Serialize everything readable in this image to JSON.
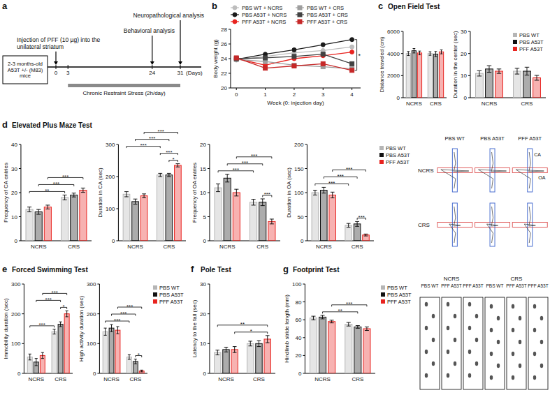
{
  "timeline": {
    "panel": "a",
    "cohort": "2-3 months-old A53T +/- (M83) mice",
    "injection": "Injection of PFF (10 µg) into the unilateral striatum",
    "behavior": "Behavioral analysis",
    "neuro": "Neuropathological analysis",
    "stress": "Chronic Restraint Stress (2h/day)",
    "days": [
      0,
      3,
      24,
      31
    ],
    "unit": "(Days)"
  },
  "chart_data": [
    {
      "panel": "b",
      "type": "line",
      "x": [
        0,
        1,
        2,
        3,
        4
      ],
      "xlim": [
        -0.2,
        4.3
      ],
      "xticks": [
        0,
        1,
        2,
        3,
        4
      ],
      "ylim": [
        20,
        28
      ],
      "yticks": [
        20,
        22,
        24,
        26,
        28
      ],
      "x_label": "Week (0: injection day)",
      "y_label": "Body weight (g)",
      "legend": "top",
      "series": [
        {
          "name": "PBS WT + NCRS",
          "color": "#bdbdbd",
          "marker": "circle",
          "values": [
            23.8,
            24.3,
            24.8,
            25.1,
            25.6
          ]
        },
        {
          "name": "PBS A53T + NCRS",
          "color": "#1a1a1a",
          "marker": "circle",
          "values": [
            23.9,
            24.6,
            25.2,
            25.9,
            26.6
          ]
        },
        {
          "name": "PFF A53T + NCRS",
          "color": "#e8231f",
          "marker": "circle",
          "values": [
            24.0,
            23.1,
            24.0,
            24.4,
            24.9
          ]
        },
        {
          "name": "PBS WT + CRS",
          "color": "#9e9e9e",
          "marker": "square",
          "values": [
            23.9,
            23.6,
            23.1,
            22.9,
            22.6
          ]
        },
        {
          "name": "PBS A53T + CRS",
          "color": "#424242",
          "marker": "square",
          "values": [
            24.0,
            24.1,
            24.3,
            24.6,
            23.3
          ]
        },
        {
          "name": "PFF A53T + CRS",
          "color": "#c62828",
          "marker": "square",
          "values": [
            24.1,
            22.7,
            23.0,
            23.3,
            22.4
          ]
        }
      ],
      "annotations": [
        {
          "text": "*",
          "series": [
            1,
            5
          ]
        }
      ]
    },
    {
      "panel": "c",
      "title": "Open Field Test",
      "type": "bar",
      "categories": [
        "NCRS",
        "CRS"
      ],
      "y_label": "Distance traveled (cm)",
      "ylim": [
        0,
        6000
      ],
      "yticks": [
        0,
        2000,
        4000,
        6000
      ],
      "series": [
        {
          "name": "PBS WT",
          "color": "#b5b5b5",
          "values": [
            4000,
            4000
          ],
          "errors": [
            180,
            160
          ]
        },
        {
          "name": "PBS A53T",
          "color": "#111111",
          "values": [
            4250,
            3950
          ],
          "errors": [
            200,
            230
          ]
        },
        {
          "name": "PFF A53T",
          "color": "#e8231f",
          "values": [
            4050,
            4150
          ],
          "errors": [
            170,
            180
          ]
        }
      ]
    },
    {
      "type": "bar",
      "categories": [
        "NCRS",
        "CRS"
      ],
      "y_label": "Duration in the center (sec)",
      "ylim": [
        0,
        30
      ],
      "yticks": [
        0,
        10,
        20,
        30
      ],
      "legend": "upper right",
      "series": [
        {
          "name": "PBS WT",
          "color": "#b5b5b5",
          "values": [
            11,
            12
          ],
          "errors": [
            1.2,
            1.3
          ]
        },
        {
          "name": "PBS A53T",
          "color": "#111111",
          "values": [
            13,
            12
          ],
          "errors": [
            1.5,
            1.8
          ]
        },
        {
          "name": "PFF A53T",
          "color": "#e8231f",
          "values": [
            12,
            9
          ],
          "errors": [
            1.0,
            1.1
          ]
        }
      ]
    },
    {
      "panel": "d",
      "title": "Elevated Plus Maze Test",
      "type": "bar",
      "categories": [
        "NCRS",
        "CRS"
      ],
      "y_label": "Frequency of CA entries",
      "ylim": [
        0,
        40
      ],
      "yticks": [
        0,
        10,
        20,
        30,
        40
      ],
      "series": [
        {
          "name": "PBS WT",
          "color": "#b5b5b5",
          "values": [
            13,
            18
          ],
          "errors": [
            1,
            1
          ]
        },
        {
          "name": "PBS A53T",
          "color": "#111111",
          "values": [
            12,
            19
          ],
          "errors": [
            1,
            0.8
          ]
        },
        {
          "name": "PFF A53T",
          "color": "#e8231f",
          "values": [
            14,
            21
          ],
          "errors": [
            0.8,
            0.9
          ]
        }
      ],
      "annotations": [
        {
          "text": "**",
          "from": 0,
          "to": 3
        },
        {
          "text": "***",
          "from": 1,
          "to": 4
        },
        {
          "text": "***",
          "from": 2,
          "to": 5
        }
      ]
    },
    {
      "type": "bar",
      "categories": [
        "NCRS",
        "CRS"
      ],
      "y_label": "Duration in CA (sec)",
      "ylim": [
        0,
        300
      ],
      "yticks": [
        0,
        100,
        200,
        300
      ],
      "series": [
        {
          "name": "PBS WT",
          "color": "#b5b5b5",
          "values": [
            145,
            205
          ],
          "errors": [
            8,
            5
          ]
        },
        {
          "name": "PBS A53T",
          "color": "#111111",
          "values": [
            122,
            205
          ],
          "errors": [
            8,
            5
          ]
        },
        {
          "name": "PFF A53T",
          "color": "#e8231f",
          "values": [
            140,
            235
          ],
          "errors": [
            6,
            5
          ]
        }
      ],
      "annotations": [
        {
          "text": "***",
          "from": 0,
          "to": 3
        },
        {
          "text": "***",
          "from": 1,
          "to": 4
        },
        {
          "text": "***",
          "from": 2,
          "to": 5
        },
        {
          "text": "***",
          "from": 3,
          "to": 5
        },
        {
          "text": "*",
          "from": 4,
          "to": 5
        }
      ]
    },
    {
      "type": "bar",
      "categories": [
        "NCRS",
        "CRS"
      ],
      "y_label": "Frequency of OA entries",
      "ylim": [
        0,
        20
      ],
      "yticks": [
        0,
        5,
        10,
        15,
        20
      ],
      "series": [
        {
          "name": "PBS WT",
          "color": "#b5b5b5",
          "values": [
            11,
            8
          ],
          "errors": [
            0.8,
            0.6
          ]
        },
        {
          "name": "PBS A53T",
          "color": "#111111",
          "values": [
            13,
            8
          ],
          "errors": [
            0.8,
            0.7
          ]
        },
        {
          "name": "PFF A53T",
          "color": "#e8231f",
          "values": [
            10,
            4
          ],
          "errors": [
            0.7,
            0.5
          ]
        }
      ],
      "annotations": [
        {
          "text": "***",
          "from": 0,
          "to": 3
        },
        {
          "text": "***",
          "from": 1,
          "to": 4
        },
        {
          "text": "***",
          "from": 2,
          "to": 5
        },
        {
          "text": "***",
          "from": 4,
          "to": 5
        }
      ]
    },
    {
      "type": "bar",
      "categories": [
        "NCRS",
        "CRS"
      ],
      "y_label": "Duration in OA (sec)",
      "ylim": [
        0,
        200
      ],
      "yticks": [
        0,
        50,
        100,
        150,
        200
      ],
      "legend": "right",
      "series": [
        {
          "name": "PBS WT",
          "color": "#b5b5b5",
          "values": [
            100,
            32
          ],
          "errors": [
            5,
            4
          ]
        },
        {
          "name": "PBS A53T",
          "color": "#111111",
          "values": [
            105,
            35
          ],
          "errors": [
            6,
            5
          ]
        },
        {
          "name": "PFF A53T",
          "color": "#e8231f",
          "values": [
            95,
            12
          ],
          "errors": [
            6,
            2
          ]
        }
      ],
      "annotations": [
        {
          "text": "***",
          "from": 0,
          "to": 3
        },
        {
          "text": "***",
          "from": 1,
          "to": 4
        },
        {
          "text": "***",
          "from": 2,
          "to": 5
        },
        {
          "text": "***",
          "from": 4,
          "to": 5
        }
      ]
    },
    {
      "panel": "e",
      "title": "Forced Swimming Test",
      "type": "bar",
      "categories": [
        "NCRS",
        "CRS"
      ],
      "y_label": "Immobility duration (sec)",
      "ylim": [
        0,
        300
      ],
      "yticks": [
        0,
        100,
        200,
        300
      ],
      "series": [
        {
          "name": "PBS WT",
          "color": "#b5b5b5",
          "values": [
            55,
            140
          ],
          "errors": [
            10,
            8
          ]
        },
        {
          "name": "PBS A53T",
          "color": "#111111",
          "values": [
            38,
            165
          ],
          "errors": [
            12,
            8
          ]
        },
        {
          "name": "PFF A53T",
          "color": "#e8231f",
          "values": [
            60,
            200
          ],
          "errors": [
            10,
            10
          ]
        }
      ],
      "annotations": [
        {
          "text": "***",
          "from": 0,
          "to": 3
        },
        {
          "text": "***",
          "from": 1,
          "to": 4
        },
        {
          "text": "***",
          "from": 2,
          "to": 5
        },
        {
          "text": "*",
          "from": 4,
          "to": 5
        }
      ]
    },
    {
      "type": "bar",
      "categories": [
        "NCRS",
        "CRS"
      ],
      "y_label": "High activity duration (sec)",
      "ylim": [
        0,
        300
      ],
      "yticks": [
        0,
        100,
        200,
        300
      ],
      "legend": "right",
      "series": [
        {
          "name": "PBS WT",
          "color": "#b5b5b5",
          "values": [
            140,
            55
          ],
          "errors": [
            12,
            8
          ]
        },
        {
          "name": "PBS A53T",
          "color": "#111111",
          "values": [
            152,
            40
          ],
          "errors": [
            12,
            8
          ]
        },
        {
          "name": "PFF A53T",
          "color": "#e8231f",
          "values": [
            145,
            8
          ],
          "errors": [
            12,
            3
          ]
        }
      ],
      "annotations": [
        {
          "text": "***",
          "from": 0,
          "to": 3
        },
        {
          "text": "***",
          "from": 1,
          "to": 4
        },
        {
          "text": "***",
          "from": 2,
          "to": 5
        },
        {
          "text": "*",
          "from": 4,
          "to": 5
        }
      ]
    },
    {
      "panel": "f",
      "title": "Pole Test",
      "type": "bar",
      "categories": [
        "NCRS",
        "CRS"
      ],
      "y_label": "Latency to the fall (sec)",
      "ylim": [
        0,
        30
      ],
      "yticks": [
        0,
        10,
        20,
        30
      ],
      "series": [
        {
          "name": "PBS WT",
          "color": "#b5b5b5",
          "values": [
            7,
            10
          ],
          "errors": [
            0.8,
            0.8
          ]
        },
        {
          "name": "PBS A53T",
          "color": "#111111",
          "values": [
            8,
            10
          ],
          "errors": [
            0.8,
            1
          ]
        },
        {
          "name": "PFF A53T",
          "color": "#e8231f",
          "values": [
            8,
            11.5
          ],
          "errors": [
            1,
            1.2
          ]
        }
      ],
      "annotations": [
        {
          "text": "**",
          "from": 0,
          "to": 5
        },
        {
          "text": "*",
          "from": 2,
          "to": 5
        }
      ]
    },
    {
      "panel": "g",
      "title": "Footprint Test",
      "type": "bar",
      "categories": [
        "NCRS",
        "CRS"
      ],
      "y_label": "Hindlimb stride length (mm)",
      "ylim": [
        0,
        100
      ],
      "yticks": [
        0,
        20,
        40,
        60,
        80,
        100
      ],
      "legend": "right",
      "series": [
        {
          "name": "PBS WT",
          "color": "#b5b5b5",
          "values": [
            62,
            55
          ],
          "errors": [
            2,
            2
          ]
        },
        {
          "name": "PBS A53T",
          "color": "#111111",
          "values": [
            63,
            52
          ],
          "errors": [
            2,
            1.5
          ]
        },
        {
          "name": "PFF A53T",
          "color": "#e8231f",
          "values": [
            58,
            50
          ],
          "errors": [
            1.5,
            2
          ]
        }
      ],
      "annotations": [
        {
          "text": "**",
          "from": 1,
          "to": 4
        },
        {
          "text": "***",
          "from": 2,
          "to": 5
        }
      ]
    }
  ],
  "maze_images": {
    "columns": [
      "PBS WT",
      "PBS A53T",
      "PFF A53T"
    ],
    "rows": [
      "NCRS",
      "CRS"
    ],
    "closed_arm": "CA",
    "open_arm": "OA"
  },
  "footprint_images": {
    "groups": [
      "NCRS",
      "CRS"
    ],
    "columns": [
      "PBS WT",
      "PFF A53T",
      "PFF A53T"
    ]
  }
}
